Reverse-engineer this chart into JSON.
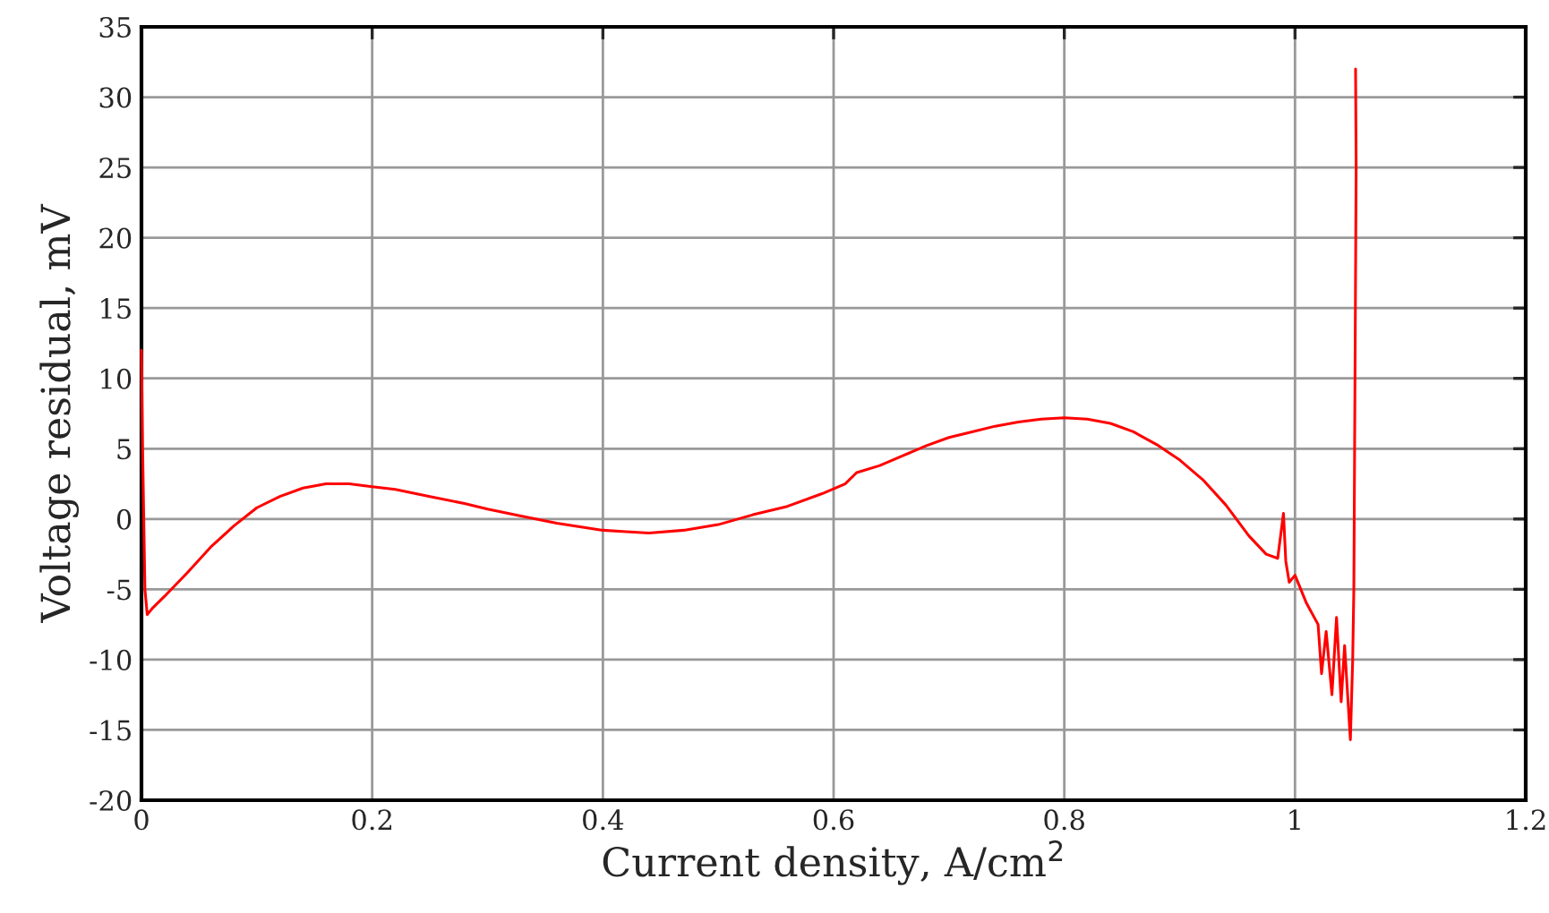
{
  "chart_data": {
    "type": "line",
    "xlabel": "Current density, A/cm$^{2}$",
    "ylabel": "Voltage residual, mV",
    "xlim": [
      0,
      1.2
    ],
    "xticks": [
      0,
      0.2,
      0.4,
      0.6,
      0.8,
      1,
      1.2
    ],
    "ylim": [
      -20,
      35
    ],
    "yticks": [
      -20,
      -15,
      -10,
      -5,
      0,
      5,
      10,
      15,
      20,
      25,
      30,
      35
    ],
    "grid": true,
    "legend": false,
    "marker": "none",
    "line_style": "solid",
    "series": [
      {
        "color": "#ff0000",
        "x": [
          0,
          0.001,
          0.003,
          0.005,
          0.01,
          0.02,
          0.04,
          0.06,
          0.08,
          0.1,
          0.12,
          0.14,
          0.16,
          0.18,
          0.2,
          0.22,
          0.25,
          0.28,
          0.3,
          0.33,
          0.36,
          0.4,
          0.42,
          0.44,
          0.47,
          0.5,
          0.53,
          0.56,
          0.59,
          0.61,
          0.62,
          0.64,
          0.66,
          0.68,
          0.7,
          0.72,
          0.74,
          0.76,
          0.78,
          0.8,
          0.82,
          0.84,
          0.86,
          0.88,
          0.9,
          0.92,
          0.94,
          0.96,
          0.975,
          0.985,
          0.99,
          0.992,
          0.995,
          1.0,
          1.01,
          1.02,
          1.023,
          1.027,
          1.032,
          1.036,
          1.04,
          1.043,
          1.048,
          1.05,
          1.051,
          1.052,
          1.053,
          1.0525
        ],
        "values": [
          12,
          5,
          -5,
          -6.8,
          -6.3,
          -5.5,
          -3.8,
          -2,
          -0.5,
          0.8,
          1.6,
          2.2,
          2.5,
          2.5,
          2.3,
          2.1,
          1.6,
          1.1,
          0.7,
          0.2,
          -0.3,
          -0.8,
          -0.9,
          -1.0,
          -0.8,
          -0.4,
          0.3,
          0.9,
          1.8,
          2.5,
          3.3,
          3.8,
          4.5,
          5.2,
          5.8,
          6.2,
          6.6,
          6.9,
          7.1,
          7.2,
          7.1,
          6.8,
          6.2,
          5.3,
          4.2,
          2.8,
          1.0,
          -1.2,
          -2.5,
          -2.8,
          0.4,
          -3,
          -4.5,
          -4,
          -6,
          -7.5,
          -11,
          -8,
          -12.5,
          -7,
          -13,
          -9,
          -15.7,
          -10,
          -5,
          10,
          25,
          32
        ]
      }
    ]
  }
}
